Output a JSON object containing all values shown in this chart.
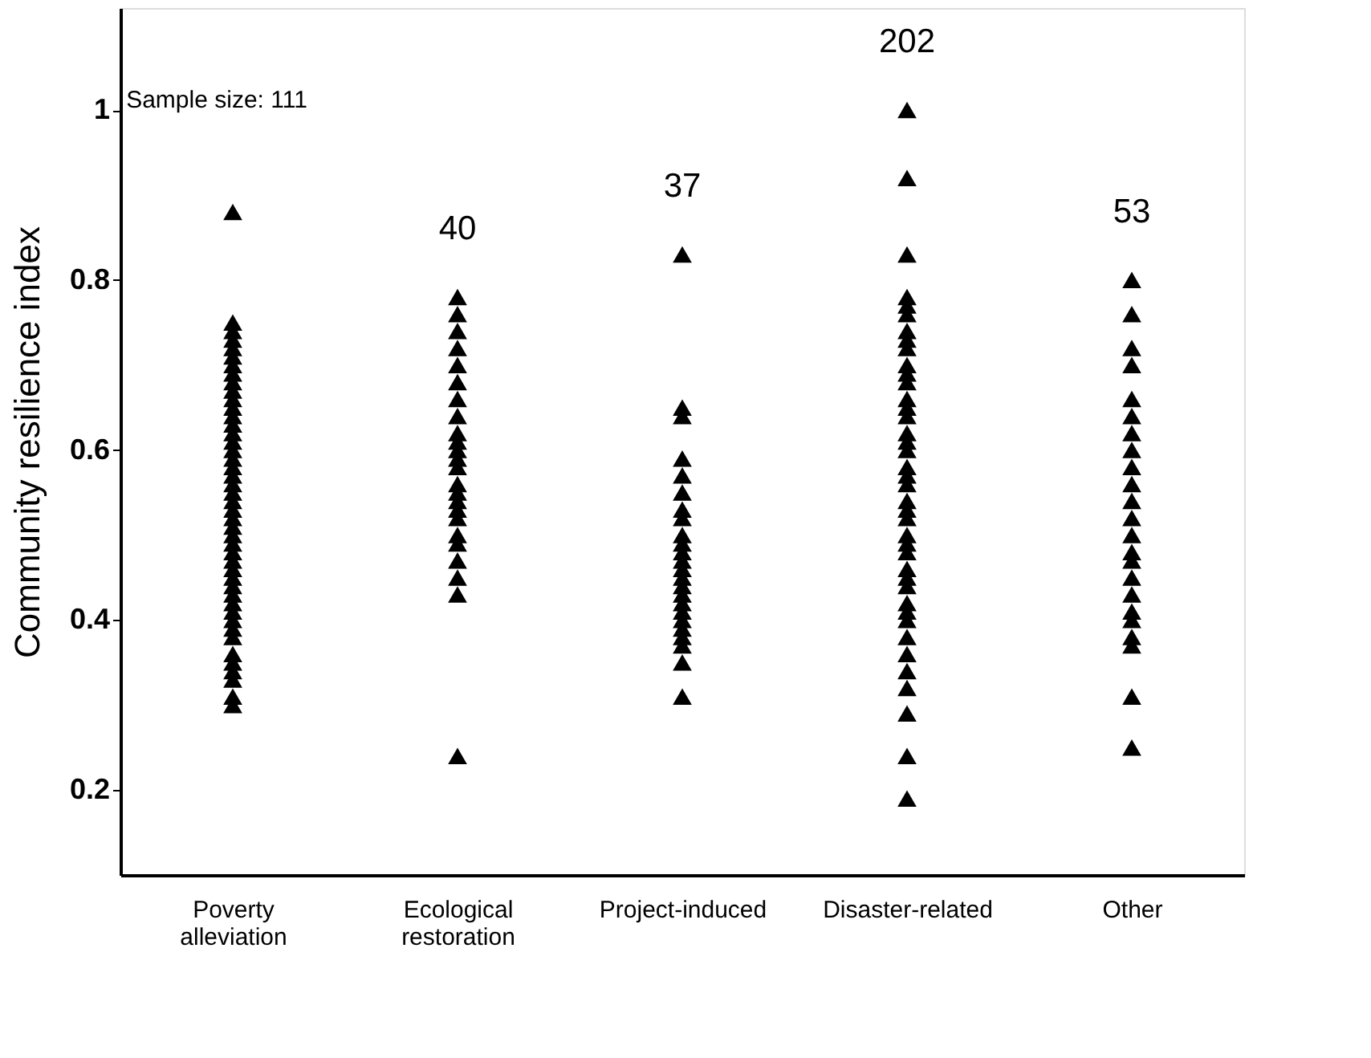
{
  "chart_data": {
    "type": "scatter",
    "ylabel": "Community resilience index",
    "categories": [
      "Poverty alleviation",
      "Ecological restoration",
      "Project-induced",
      "Disaster-related",
      "Other"
    ],
    "ylim": [
      0.1,
      1.12
    ],
    "yticks": [
      0.2,
      0.4,
      0.6,
      0.8,
      {
        "value": 1,
        "label": "1"
      }
    ],
    "grid": false,
    "marker": "triangle",
    "series": [
      {
        "color": "#000000",
        "x": [
          "Poverty alleviation",
          "Poverty alleviation",
          "Poverty alleviation",
          "Poverty alleviation",
          "Poverty alleviation",
          "Poverty alleviation",
          "Poverty alleviation",
          "Poverty alleviation",
          "Poverty alleviation",
          "Poverty alleviation",
          "Poverty alleviation",
          "Poverty alleviation",
          "Poverty alleviation",
          "Poverty alleviation",
          "Poverty alleviation",
          "Poverty alleviation",
          "Poverty alleviation",
          "Poverty alleviation",
          "Poverty alleviation",
          "Poverty alleviation",
          "Poverty alleviation",
          "Poverty alleviation",
          "Poverty alleviation",
          "Poverty alleviation",
          "Poverty alleviation",
          "Poverty alleviation",
          "Poverty alleviation",
          "Poverty alleviation",
          "Poverty alleviation",
          "Poverty alleviation",
          "Poverty alleviation",
          "Poverty alleviation",
          "Poverty alleviation",
          "Poverty alleviation",
          "Poverty alleviation",
          "Poverty alleviation",
          "Poverty alleviation",
          "Poverty alleviation",
          "Poverty alleviation",
          "Poverty alleviation",
          "Poverty alleviation",
          "Poverty alleviation",
          "Poverty alleviation",
          "Poverty alleviation",
          "Poverty alleviation"
        ],
        "values": [
          0.88,
          0.75,
          0.74,
          0.73,
          0.72,
          0.71,
          0.7,
          0.69,
          0.68,
          0.67,
          0.66,
          0.65,
          0.64,
          0.63,
          0.62,
          0.61,
          0.6,
          0.59,
          0.58,
          0.57,
          0.56,
          0.55,
          0.54,
          0.53,
          0.52,
          0.51,
          0.5,
          0.49,
          0.48,
          0.47,
          0.46,
          0.45,
          0.44,
          0.43,
          0.42,
          0.41,
          0.4,
          0.39,
          0.38,
          0.36,
          0.35,
          0.34,
          0.33,
          0.31,
          0.3
        ]
      },
      {
        "color": "#000000",
        "x": [
          "Ecological restoration",
          "Ecological restoration",
          "Ecological restoration",
          "Ecological restoration",
          "Ecological restoration",
          "Ecological restoration",
          "Ecological restoration",
          "Ecological restoration",
          "Ecological restoration",
          "Ecological restoration",
          "Ecological restoration",
          "Ecological restoration",
          "Ecological restoration",
          "Ecological restoration",
          "Ecological restoration",
          "Ecological restoration",
          "Ecological restoration",
          "Ecological restoration",
          "Ecological restoration",
          "Ecological restoration",
          "Ecological restoration",
          "Ecological restoration",
          "Ecological restoration",
          "Ecological restoration"
        ],
        "values": [
          0.78,
          0.76,
          0.74,
          0.72,
          0.7,
          0.68,
          0.66,
          0.64,
          0.62,
          0.61,
          0.6,
          0.59,
          0.58,
          0.56,
          0.55,
          0.54,
          0.53,
          0.52,
          0.5,
          0.49,
          0.47,
          0.45,
          0.43,
          0.24
        ]
      },
      {
        "color": "#000000",
        "x": [
          "Project-induced",
          "Project-induced",
          "Project-induced",
          "Project-induced",
          "Project-induced",
          "Project-induced",
          "Project-induced",
          "Project-induced",
          "Project-induced",
          "Project-induced",
          "Project-induced",
          "Project-induced",
          "Project-induced",
          "Project-induced",
          "Project-induced",
          "Project-induced",
          "Project-induced",
          "Project-induced",
          "Project-induced",
          "Project-induced",
          "Project-induced",
          "Project-induced",
          "Project-induced",
          "Project-induced"
        ],
        "values": [
          0.83,
          0.65,
          0.64,
          0.59,
          0.57,
          0.55,
          0.53,
          0.52,
          0.5,
          0.49,
          0.48,
          0.47,
          0.46,
          0.45,
          0.44,
          0.43,
          0.42,
          0.41,
          0.4,
          0.39,
          0.38,
          0.37,
          0.35,
          0.31
        ]
      },
      {
        "color": "#000000",
        "x": [
          "Disaster-related",
          "Disaster-related",
          "Disaster-related",
          "Disaster-related",
          "Disaster-related",
          "Disaster-related",
          "Disaster-related",
          "Disaster-related",
          "Disaster-related",
          "Disaster-related",
          "Disaster-related",
          "Disaster-related",
          "Disaster-related",
          "Disaster-related",
          "Disaster-related",
          "Disaster-related",
          "Disaster-related",
          "Disaster-related",
          "Disaster-related",
          "Disaster-related",
          "Disaster-related",
          "Disaster-related",
          "Disaster-related",
          "Disaster-related",
          "Disaster-related",
          "Disaster-related",
          "Disaster-related",
          "Disaster-related",
          "Disaster-related",
          "Disaster-related",
          "Disaster-related",
          "Disaster-related",
          "Disaster-related",
          "Disaster-related",
          "Disaster-related",
          "Disaster-related",
          "Disaster-related",
          "Disaster-related",
          "Disaster-related",
          "Disaster-related"
        ],
        "values": [
          1.0,
          0.92,
          0.83,
          0.78,
          0.77,
          0.76,
          0.74,
          0.73,
          0.72,
          0.7,
          0.69,
          0.68,
          0.66,
          0.65,
          0.64,
          0.62,
          0.61,
          0.6,
          0.58,
          0.57,
          0.56,
          0.54,
          0.53,
          0.52,
          0.5,
          0.49,
          0.48,
          0.46,
          0.45,
          0.44,
          0.42,
          0.41,
          0.4,
          0.38,
          0.36,
          0.34,
          0.32,
          0.29,
          0.24,
          0.19
        ]
      },
      {
        "color": "#000000",
        "x": [
          "Other",
          "Other",
          "Other",
          "Other",
          "Other",
          "Other",
          "Other",
          "Other",
          "Other",
          "Other",
          "Other",
          "Other",
          "Other",
          "Other",
          "Other",
          "Other",
          "Other",
          "Other",
          "Other",
          "Other",
          "Other",
          "Other",
          "Other"
        ],
        "values": [
          0.8,
          0.76,
          0.72,
          0.7,
          0.66,
          0.64,
          0.62,
          0.6,
          0.58,
          0.56,
          0.54,
          0.52,
          0.5,
          0.48,
          0.47,
          0.45,
          0.43,
          0.41,
          0.4,
          0.38,
          0.37,
          0.31,
          0.25
        ]
      }
    ],
    "annotations": [
      "Sample size: 111",
      "40",
      "37",
      "202",
      "53"
    ]
  }
}
